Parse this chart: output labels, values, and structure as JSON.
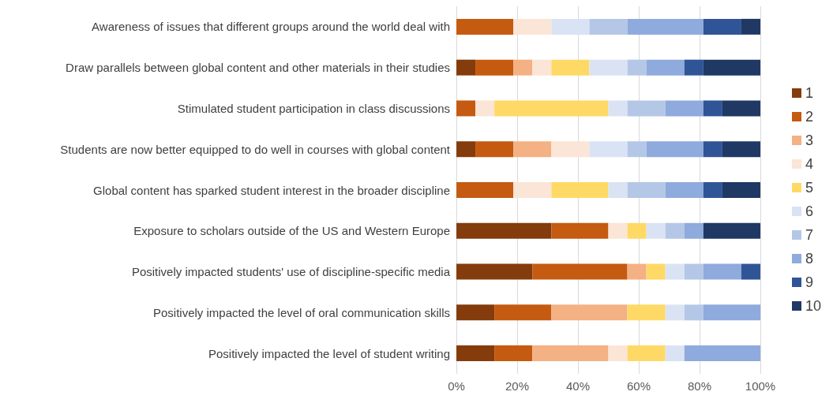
{
  "chart_data": {
    "type": "bar",
    "orientation": "horizontal",
    "stacked": true,
    "categories": [
      "Awareness of issues that different groups around the world deal with",
      "Draw parallels between global content and other materials in their studies",
      "Stimulated student participation in class discussions",
      "Students are now better equipped to do well in courses with global content",
      "Global content has sparked student interest in the broader discipline",
      "Exposure to scholars outside of the US and Western Europe",
      "Positively impacted students' use of discipline-specific media",
      "Positively impacted the level of oral communication skills",
      "Positively impacted the level of student writing"
    ],
    "series": [
      {
        "name": "1",
        "color": "#843c0c",
        "values": [
          0,
          6.25,
          0,
          6.25,
          0,
          31.25,
          25,
          12.5,
          12.5
        ]
      },
      {
        "name": "2",
        "color": "#c55a11",
        "values": [
          18.75,
          12.5,
          6.25,
          12.5,
          18.75,
          18.75,
          31.25,
          18.75,
          12.5
        ]
      },
      {
        "name": "3",
        "color": "#f4b183",
        "values": [
          0,
          6.25,
          0,
          12.5,
          0,
          0,
          6.25,
          25,
          25
        ]
      },
      {
        "name": "4",
        "color": "#fbe5d6",
        "values": [
          12.5,
          6.25,
          6.25,
          12.5,
          12.5,
          6.25,
          0,
          0,
          6.25
        ]
      },
      {
        "name": "5",
        "color": "#ffd966",
        "values": [
          0,
          12.5,
          37.5,
          0,
          18.75,
          6.25,
          6.25,
          12.5,
          12.5
        ]
      },
      {
        "name": "6",
        "color": "#dae3f3",
        "values": [
          12.5,
          12.5,
          6.25,
          12.5,
          6.25,
          6.25,
          6.25,
          6.25,
          6.25
        ]
      },
      {
        "name": "7",
        "color": "#b4c7e7",
        "values": [
          12.5,
          6.25,
          12.5,
          6.25,
          12.5,
          6.25,
          6.25,
          6.25,
          0
        ]
      },
      {
        "name": "8",
        "color": "#8faadc",
        "values": [
          25,
          12.5,
          12.5,
          18.75,
          12.5,
          6.25,
          12.5,
          18.75,
          25
        ]
      },
      {
        "name": "9",
        "color": "#2f5597",
        "values": [
          12.5,
          6.25,
          6.25,
          6.25,
          6.25,
          0,
          6.25,
          0,
          0
        ]
      },
      {
        "name": "10",
        "color": "#1f3864",
        "values": [
          6.25,
          18.75,
          12.5,
          12.5,
          12.5,
          18.75,
          0,
          0,
          0
        ]
      }
    ],
    "xlim": [
      0,
      100
    ],
    "xticks": [
      {
        "value": 0,
        "label": "0%"
      },
      {
        "value": 20,
        "label": "20%"
      },
      {
        "value": 40,
        "label": "40%"
      },
      {
        "value": 60,
        "label": "60%"
      },
      {
        "value": 80,
        "label": "80%"
      },
      {
        "value": 100,
        "label": "100%"
      }
    ],
    "grid": "x",
    "legend": "right"
  }
}
